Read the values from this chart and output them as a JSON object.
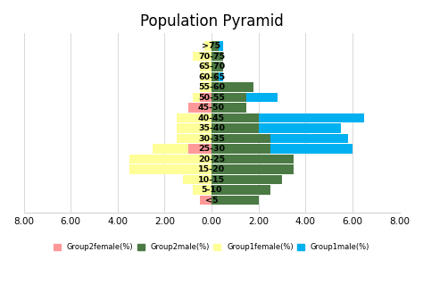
{
  "title": "Population Pyramid",
  "age_groups": [
    "<5",
    "5-10",
    "10-15",
    "15-20",
    "20-25",
    "25-30",
    "30-35",
    "35-40",
    "40-45",
    "45-50",
    "50-55",
    "55-60",
    "60-65",
    "65-70",
    "70-75",
    ">75"
  ],
  "group2_female": [
    0.5,
    0.0,
    0.0,
    0.0,
    0.0,
    1.0,
    0.0,
    0.0,
    0.0,
    1.0,
    0.5,
    0.0,
    0.0,
    0.0,
    0.0,
    0.0
  ],
  "group2_male": [
    2.0,
    2.5,
    3.0,
    3.5,
    3.5,
    2.5,
    2.5,
    2.0,
    2.0,
    1.5,
    1.5,
    1.8,
    0.3,
    0.5,
    0.5,
    0.3
  ],
  "group1_female": [
    0.0,
    0.8,
    1.2,
    3.5,
    3.5,
    2.5,
    1.5,
    1.5,
    1.5,
    1.0,
    0.8,
    0.5,
    0.5,
    0.5,
    0.8,
    0.3
  ],
  "group1_male": [
    0.5,
    1.0,
    1.5,
    2.2,
    1.5,
    6.0,
    5.8,
    5.5,
    6.5,
    0.0,
    2.8,
    0.0,
    0.5,
    0.5,
    0.5,
    0.5
  ],
  "color_group2_female": "#FF9999",
  "color_group2_male": "#4B7A44",
  "color_group1_female": "#FFFF99",
  "color_group1_male": "#00B0F0",
  "xlim": [
    -8,
    8
  ],
  "xticks": [
    -8,
    -6,
    -4,
    -2,
    0,
    2,
    4,
    6,
    8
  ],
  "xticklabels": [
    "8.00",
    "6.00",
    "4.00",
    "2.00",
    "0.00",
    "2.00",
    "4.00",
    "6.00",
    "8.00"
  ],
  "legend_labels": [
    "Group2female(%)",
    "Group2male(%)",
    "Group1female(%)",
    "Group1male(%)"
  ],
  "bar_height": 0.9
}
